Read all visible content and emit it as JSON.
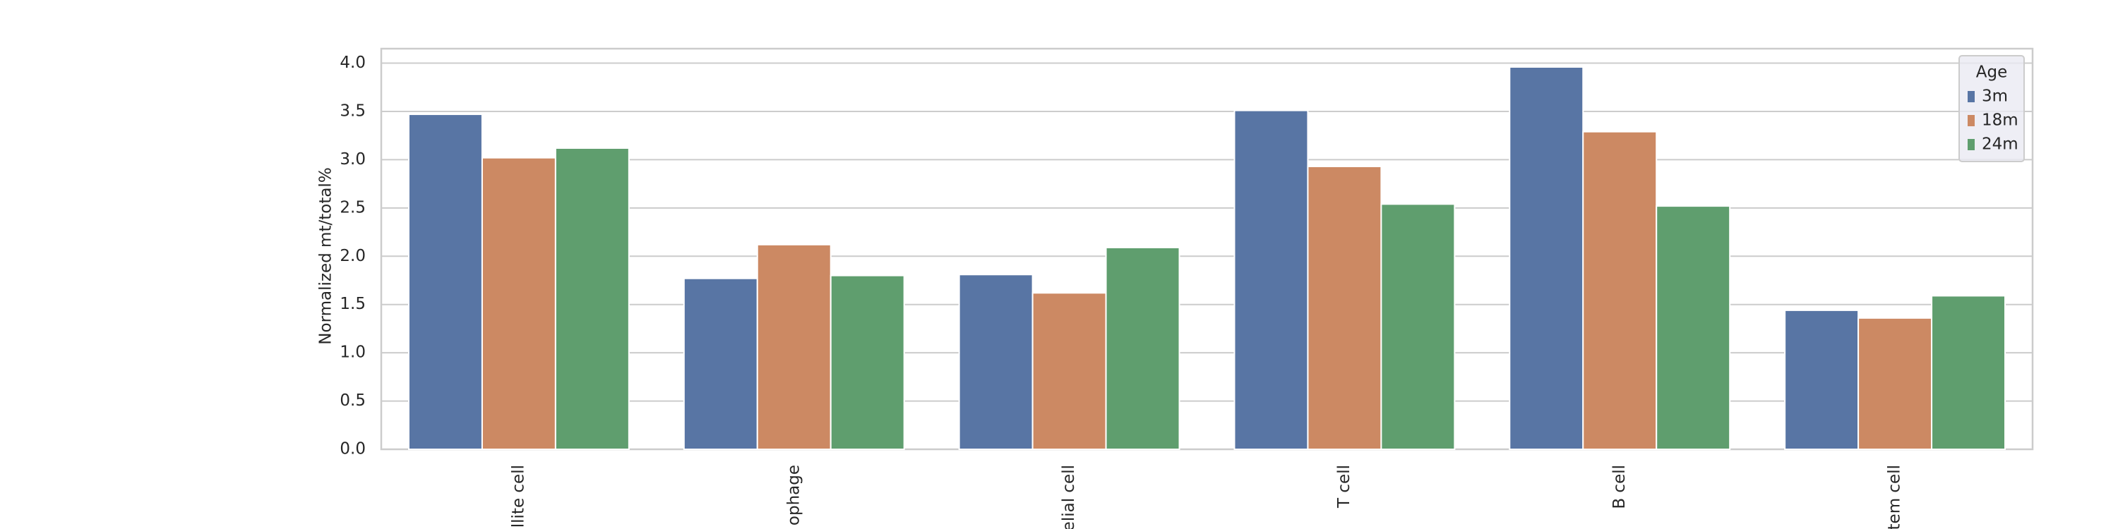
{
  "chart_data": {
    "type": "bar",
    "y_label": "Normalized mt/total%",
    "categories": [
      "llite cell",
      "ophage",
      "elial cell",
      "T cell",
      "B cell",
      "tem cell"
    ],
    "series": [
      {
        "name": "3m",
        "color": "#5875a4",
        "values": [
          3.47,
          1.77,
          1.81,
          3.51,
          3.96,
          1.44
        ]
      },
      {
        "name": "18m",
        "color": "#cc8963",
        "values": [
          3.02,
          2.12,
          1.62,
          2.93,
          3.29,
          1.36
        ]
      },
      {
        "name": "24m",
        "color": "#5f9e6e",
        "values": [
          3.12,
          1.8,
          2.09,
          2.54,
          2.52,
          1.59
        ]
      }
    ],
    "legend_title": "Age",
    "legend_position": "upper right",
    "ylim": [
      0,
      4.15
    ],
    "yticks": [
      {
        "value": 0,
        "label": "0.0"
      },
      {
        "value": 0.5,
        "label": "0.5"
      },
      {
        "value": 1,
        "label": "1.0"
      },
      {
        "value": 1.5,
        "label": "1.5"
      },
      {
        "value": 2,
        "label": "2.0"
      },
      {
        "value": 2.5,
        "label": "2.5"
      },
      {
        "value": 3,
        "label": "3.0"
      },
      {
        "value": 3.5,
        "label": "3.5"
      },
      {
        "value": 4,
        "label": "4.0"
      }
    ],
    "grid": true
  }
}
